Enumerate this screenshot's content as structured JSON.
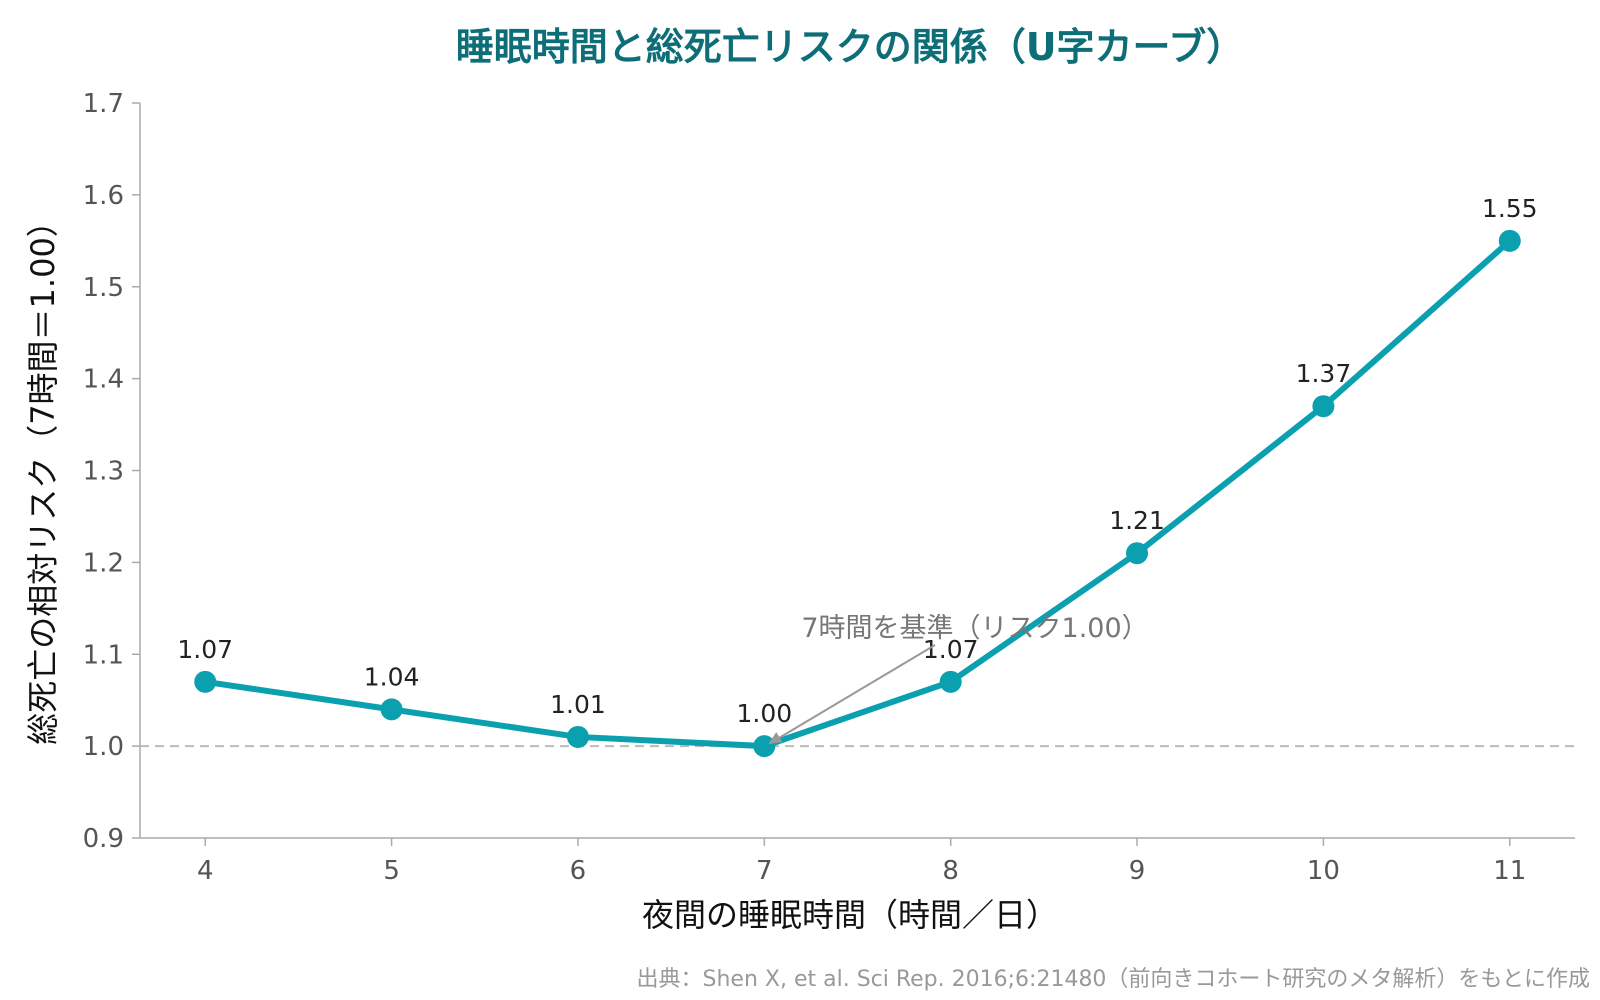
{
  "chart_data": {
    "type": "line",
    "title": "睡眠時間と総死亡リスクの関係（U字カーブ）",
    "xlabel": "夜間の睡眠時間（時間／日）",
    "ylabel": "総死亡の相対リスク（7時間＝1.00）",
    "x": [
      4,
      5,
      6,
      7,
      8,
      9,
      10,
      11
    ],
    "series": [
      {
        "values": [
          1.07,
          1.04,
          1.01,
          1.0,
          1.07,
          1.21,
          1.37,
          1.55
        ],
        "labels": [
          "1.07",
          "1.04",
          "1.01",
          "1.00",
          "1.07",
          "1.21",
          "1.37",
          "1.55"
        ],
        "color": "#0aa0b0"
      }
    ],
    "xlim": [
      3.65,
      11.35
    ],
    "ylim": [
      0.9,
      1.7
    ],
    "yticks": [
      0.9,
      1.0,
      1.1,
      1.2,
      1.3,
      1.4,
      1.5,
      1.6,
      1.7
    ],
    "ytick_labels": [
      "0.9",
      "1.0",
      "1.1",
      "1.2",
      "1.3",
      "1.4",
      "1.5",
      "1.6",
      "1.7"
    ],
    "xticks": [
      4,
      5,
      6,
      7,
      8,
      9,
      10,
      11
    ],
    "xtick_labels": [
      "4",
      "5",
      "6",
      "7",
      "8",
      "9",
      "10",
      "11"
    ],
    "reference_line": {
      "y": 1.0,
      "style": "dashed",
      "color": "#bbbbbb"
    },
    "annotation": {
      "text": "7時間を基準（リスク1.00）",
      "target_x": 7,
      "target_y": 1.0
    },
    "grid": false,
    "legend": "none",
    "source": "出典：Shen X, et al. Sci Rep. 2016;6:21480（前向きコホート研究のメタ解析）をもとに作成"
  }
}
